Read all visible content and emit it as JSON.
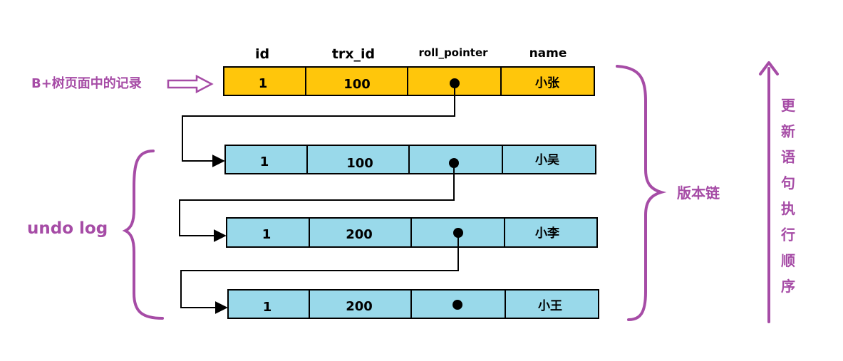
{
  "columns": [
    "id",
    "trx_id",
    "roll_pointer",
    "name"
  ],
  "rows": [
    {
      "id": "1",
      "trx_id": "100",
      "name": "小张",
      "fill": "#ffc60b",
      "type": "current"
    },
    {
      "id": "1",
      "trx_id": "100",
      "name": "小吴",
      "fill": "#99d9ea",
      "type": "undo"
    },
    {
      "id": "1",
      "trx_id": "200",
      "name": "小李",
      "fill": "#99d9ea",
      "type": "undo"
    },
    {
      "id": "1",
      "trx_id": "200",
      "name": "小王",
      "fill": "#99d9ea",
      "type": "undo"
    }
  ],
  "labels": {
    "bplus_record": "B+树页面中的记录",
    "undo_log": "undo log",
    "version_chain": "版本链",
    "update_order": "更新语句执行顺序"
  },
  "colors": {
    "accent": "#a64ca6",
    "current_row": "#ffc60b",
    "undo_row": "#99d9ea",
    "pointer": "#000000"
  }
}
